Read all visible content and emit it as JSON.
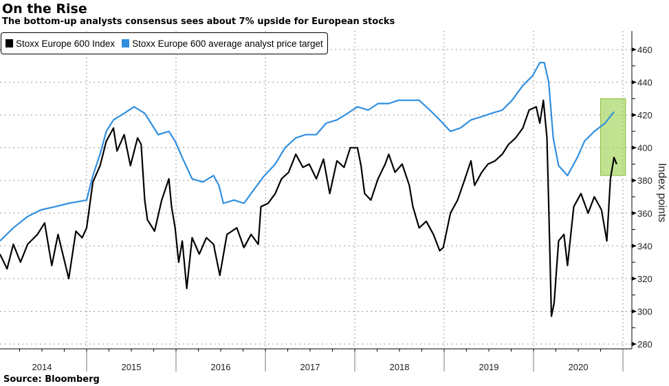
{
  "title": "On the Rise",
  "subtitle": "The bottom-up analysts consensus sees about 7% upside for European stocks",
  "source": "Source: Bloomberg",
  "chart_data": {
    "type": "line",
    "title": "On the Rise",
    "ylabel": "Index points",
    "ylim": [
      276,
      470
    ],
    "xlim": [
      2014.0,
      2021.0
    ],
    "yticks": [
      280,
      300,
      320,
      340,
      360,
      380,
      400,
      420,
      440,
      460
    ],
    "xtick_labels": [
      "2014",
      "2015",
      "2016",
      "2017",
      "2018",
      "2019",
      "2020"
    ],
    "grid": true,
    "legend_position": "top-left",
    "highlight": {
      "x": [
        2020.75,
        2021.03
      ],
      "y": [
        383,
        430
      ],
      "color": "#9fd356"
    },
    "series": [
      {
        "name": "Stoxx Europe 600 Index",
        "color": "#000000",
        "points": [
          [
            2014.03,
            335
          ],
          [
            2014.11,
            326
          ],
          [
            2014.18,
            341
          ],
          [
            2014.26,
            330
          ],
          [
            2014.34,
            341
          ],
          [
            2014.45,
            347
          ],
          [
            2014.53,
            354
          ],
          [
            2014.61,
            328
          ],
          [
            2014.68,
            347
          ],
          [
            2014.8,
            320
          ],
          [
            2014.88,
            349
          ],
          [
            2014.95,
            345
          ],
          [
            2015.0,
            351
          ],
          [
            2015.07,
            379
          ],
          [
            2015.15,
            389
          ],
          [
            2015.22,
            404
          ],
          [
            2015.3,
            412
          ],
          [
            2015.34,
            398
          ],
          [
            2015.42,
            408
          ],
          [
            2015.49,
            389
          ],
          [
            2015.57,
            406
          ],
          [
            2015.61,
            402
          ],
          [
            2015.65,
            368
          ],
          [
            2015.68,
            356
          ],
          [
            2015.76,
            349
          ],
          [
            2015.84,
            368
          ],
          [
            2015.92,
            381
          ],
          [
            2015.95,
            364
          ],
          [
            2015.99,
            351
          ],
          [
            2016.03,
            330
          ],
          [
            2016.07,
            343
          ],
          [
            2016.12,
            314
          ],
          [
            2016.18,
            345
          ],
          [
            2016.26,
            335
          ],
          [
            2016.34,
            345
          ],
          [
            2016.42,
            341
          ],
          [
            2016.49,
            322
          ],
          [
            2016.57,
            347
          ],
          [
            2016.68,
            351
          ],
          [
            2016.76,
            339
          ],
          [
            2016.84,
            347
          ],
          [
            2016.92,
            341
          ],
          [
            2016.95,
            364
          ],
          [
            2017.03,
            366
          ],
          [
            2017.11,
            372
          ],
          [
            2017.18,
            381
          ],
          [
            2017.26,
            385
          ],
          [
            2017.34,
            396
          ],
          [
            2017.42,
            388
          ],
          [
            2017.49,
            390
          ],
          [
            2017.57,
            381
          ],
          [
            2017.65,
            393
          ],
          [
            2017.72,
            372
          ],
          [
            2017.8,
            392
          ],
          [
            2017.88,
            388
          ],
          [
            2017.95,
            400
          ],
          [
            2018.03,
            400
          ],
          [
            2018.07,
            389
          ],
          [
            2018.11,
            372
          ],
          [
            2018.18,
            368
          ],
          [
            2018.26,
            381
          ],
          [
            2018.34,
            390
          ],
          [
            2018.38,
            396
          ],
          [
            2018.45,
            385
          ],
          [
            2018.53,
            390
          ],
          [
            2018.61,
            377
          ],
          [
            2018.65,
            364
          ],
          [
            2018.72,
            351
          ],
          [
            2018.8,
            355
          ],
          [
            2018.88,
            347
          ],
          [
            2018.95,
            337
          ],
          [
            2018.99,
            339
          ],
          [
            2019.07,
            360
          ],
          [
            2019.15,
            368
          ],
          [
            2019.22,
            379
          ],
          [
            2019.3,
            392
          ],
          [
            2019.34,
            377
          ],
          [
            2019.42,
            385
          ],
          [
            2019.49,
            390
          ],
          [
            2019.57,
            392
          ],
          [
            2019.65,
            396
          ],
          [
            2019.72,
            402
          ],
          [
            2019.8,
            406
          ],
          [
            2019.88,
            412
          ],
          [
            2019.95,
            423
          ],
          [
            2020.03,
            425
          ],
          [
            2020.07,
            415
          ],
          [
            2020.11,
            429
          ],
          [
            2020.15,
            406
          ],
          [
            2020.17,
            364
          ],
          [
            2020.2,
            297
          ],
          [
            2020.23,
            305
          ],
          [
            2020.28,
            343
          ],
          [
            2020.34,
            347
          ],
          [
            2020.38,
            328
          ],
          [
            2020.45,
            364
          ],
          [
            2020.53,
            372
          ],
          [
            2020.61,
            360
          ],
          [
            2020.68,
            370
          ],
          [
            2020.76,
            362
          ],
          [
            2020.82,
            343
          ],
          [
            2020.86,
            381
          ],
          [
            2020.9,
            394
          ],
          [
            2020.93,
            390
          ]
        ]
      },
      {
        "name": "Stoxx Europe 600 average analyst price target",
        "color": "#2e8ee0",
        "points": [
          [
            2014.03,
            343
          ],
          [
            2014.18,
            351
          ],
          [
            2014.34,
            358
          ],
          [
            2014.49,
            362
          ],
          [
            2014.65,
            364
          ],
          [
            2014.8,
            366
          ],
          [
            2015.0,
            368
          ],
          [
            2015.07,
            383
          ],
          [
            2015.15,
            396
          ],
          [
            2015.22,
            410
          ],
          [
            2015.3,
            417
          ],
          [
            2015.42,
            421
          ],
          [
            2015.53,
            425
          ],
          [
            2015.65,
            421
          ],
          [
            2015.72,
            415
          ],
          [
            2015.8,
            408
          ],
          [
            2015.92,
            410
          ],
          [
            2015.99,
            404
          ],
          [
            2016.07,
            394
          ],
          [
            2016.18,
            381
          ],
          [
            2016.3,
            379
          ],
          [
            2016.42,
            383
          ],
          [
            2016.48,
            377
          ],
          [
            2016.53,
            366
          ],
          [
            2016.65,
            368
          ],
          [
            2016.76,
            366
          ],
          [
            2016.88,
            375
          ],
          [
            2016.99,
            383
          ],
          [
            2017.11,
            390
          ],
          [
            2017.22,
            400
          ],
          [
            2017.34,
            406
          ],
          [
            2017.45,
            408
          ],
          [
            2017.57,
            408
          ],
          [
            2017.68,
            415
          ],
          [
            2017.8,
            417
          ],
          [
            2017.92,
            421
          ],
          [
            2018.03,
            425
          ],
          [
            2018.15,
            423
          ],
          [
            2018.26,
            427
          ],
          [
            2018.38,
            427
          ],
          [
            2018.49,
            429
          ],
          [
            2018.61,
            429
          ],
          [
            2018.72,
            429
          ],
          [
            2018.84,
            423
          ],
          [
            2018.95,
            417
          ],
          [
            2019.07,
            410
          ],
          [
            2019.18,
            412
          ],
          [
            2019.3,
            417
          ],
          [
            2019.42,
            419
          ],
          [
            2019.53,
            421
          ],
          [
            2019.65,
            423
          ],
          [
            2019.76,
            429
          ],
          [
            2019.88,
            438
          ],
          [
            2019.99,
            444
          ],
          [
            2020.07,
            452
          ],
          [
            2020.12,
            452
          ],
          [
            2020.17,
            440
          ],
          [
            2020.22,
            406
          ],
          [
            2020.28,
            389
          ],
          [
            2020.38,
            383
          ],
          [
            2020.49,
            394
          ],
          [
            2020.57,
            404
          ],
          [
            2020.68,
            410
          ],
          [
            2020.8,
            415
          ],
          [
            2020.9,
            422
          ]
        ]
      }
    ]
  }
}
